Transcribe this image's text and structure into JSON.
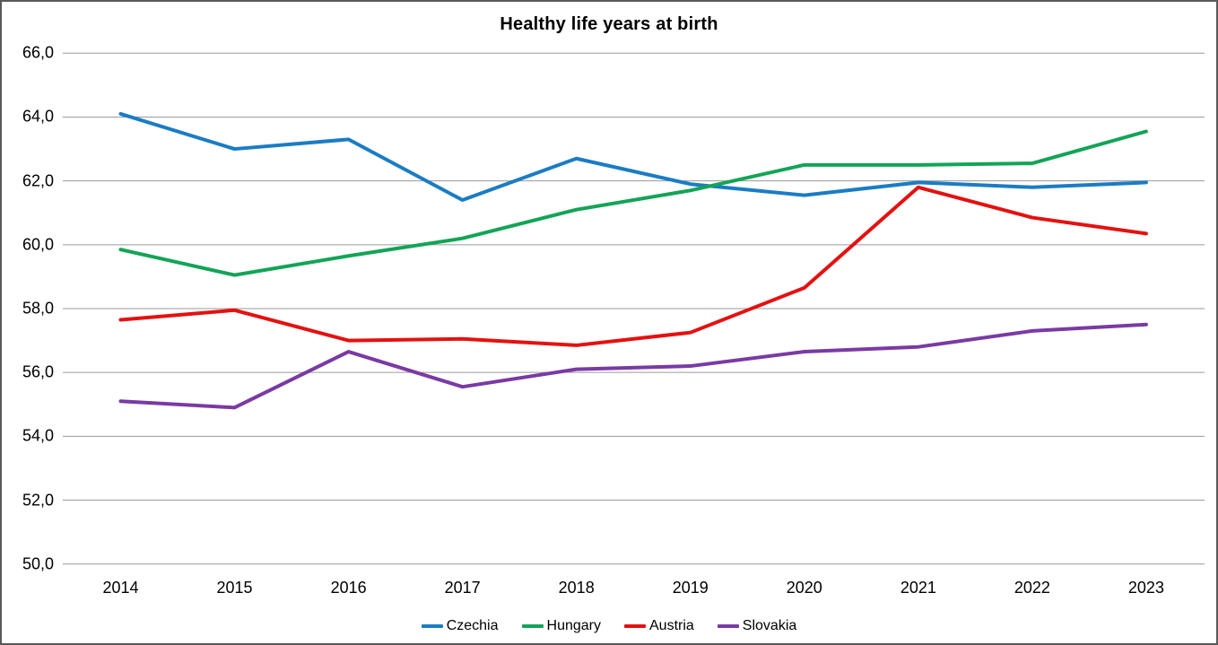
{
  "title": "Healthy life years at birth",
  "y_axis": {
    "tick_labels": [
      "66,0",
      "64,0",
      "62,0",
      "60,0",
      "58,0",
      "56,0",
      "54,0",
      "52,0",
      "50,0"
    ],
    "tick_values": [
      66,
      64,
      62,
      60,
      58,
      56,
      54,
      52,
      50
    ]
  },
  "x_axis": {
    "labels": [
      "2014",
      "2015",
      "2016",
      "2017",
      "2018",
      "2019",
      "2020",
      "2021",
      "2022",
      "2023"
    ]
  },
  "colors": {
    "gridline": "#9a9a9a",
    "border": "#595959",
    "czechia": "#1b7cc4",
    "hungary": "#13a457",
    "austria": "#e41110",
    "slovakia": "#7a3aa3"
  },
  "chart_data": {
    "type": "line",
    "title": "Healthy life years at birth",
    "x": [
      2014,
      2015,
      2016,
      2017,
      2018,
      2019,
      2020,
      2021,
      2022,
      2023
    ],
    "series": [
      {
        "name": "Czechia",
        "color": "#1b7cc4",
        "values": [
          64.1,
          63.0,
          63.3,
          61.4,
          62.7,
          61.9,
          61.55,
          61.95,
          61.8,
          61.95
        ]
      },
      {
        "name": "Hungary",
        "color": "#13a457",
        "values": [
          59.85,
          59.05,
          59.65,
          60.2,
          61.1,
          61.7,
          62.5,
          62.5,
          62.55,
          63.55
        ]
      },
      {
        "name": "Austria",
        "color": "#e41110",
        "values": [
          57.65,
          57.95,
          57.0,
          57.05,
          56.85,
          57.25,
          58.65,
          61.8,
          60.85,
          60.35
        ]
      },
      {
        "name": "Slovakia",
        "color": "#7a3aa3",
        "values": [
          55.1,
          54.9,
          56.65,
          55.55,
          56.1,
          56.2,
          56.65,
          56.8,
          57.3,
          57.5
        ]
      }
    ],
    "ylim": [
      50,
      66
    ],
    "y_tick_step": 2,
    "grid": true,
    "legend_position": "bottom",
    "decimal_separator": ","
  }
}
